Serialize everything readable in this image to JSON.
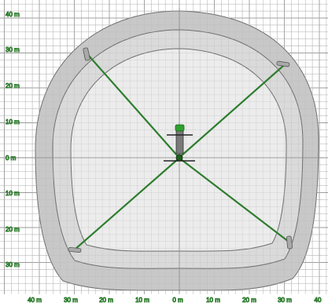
{
  "y_tick_labels": [
    "40 m",
    "30 m",
    "20 m",
    "10 m",
    "0 m",
    "10 m",
    "20 m",
    "30 m"
  ],
  "x_tick_labels": [
    "40 m",
    "30 m",
    "20 m",
    "10 m",
    "0 m",
    "10 m",
    "20 m",
    "30 m",
    "40"
  ],
  "colors": {
    "grid": "#9a9a9a",
    "outer_ring": "#c8c8c8",
    "middle_ring": "#dadada",
    "inner_floor": "#ececec",
    "ring_stroke": "#6e6e6e",
    "cable": "#2e7d2e",
    "machine": "#7a7a7a",
    "machine_top": "#2ea02e",
    "corner_post": "#a9a9a9"
  }
}
